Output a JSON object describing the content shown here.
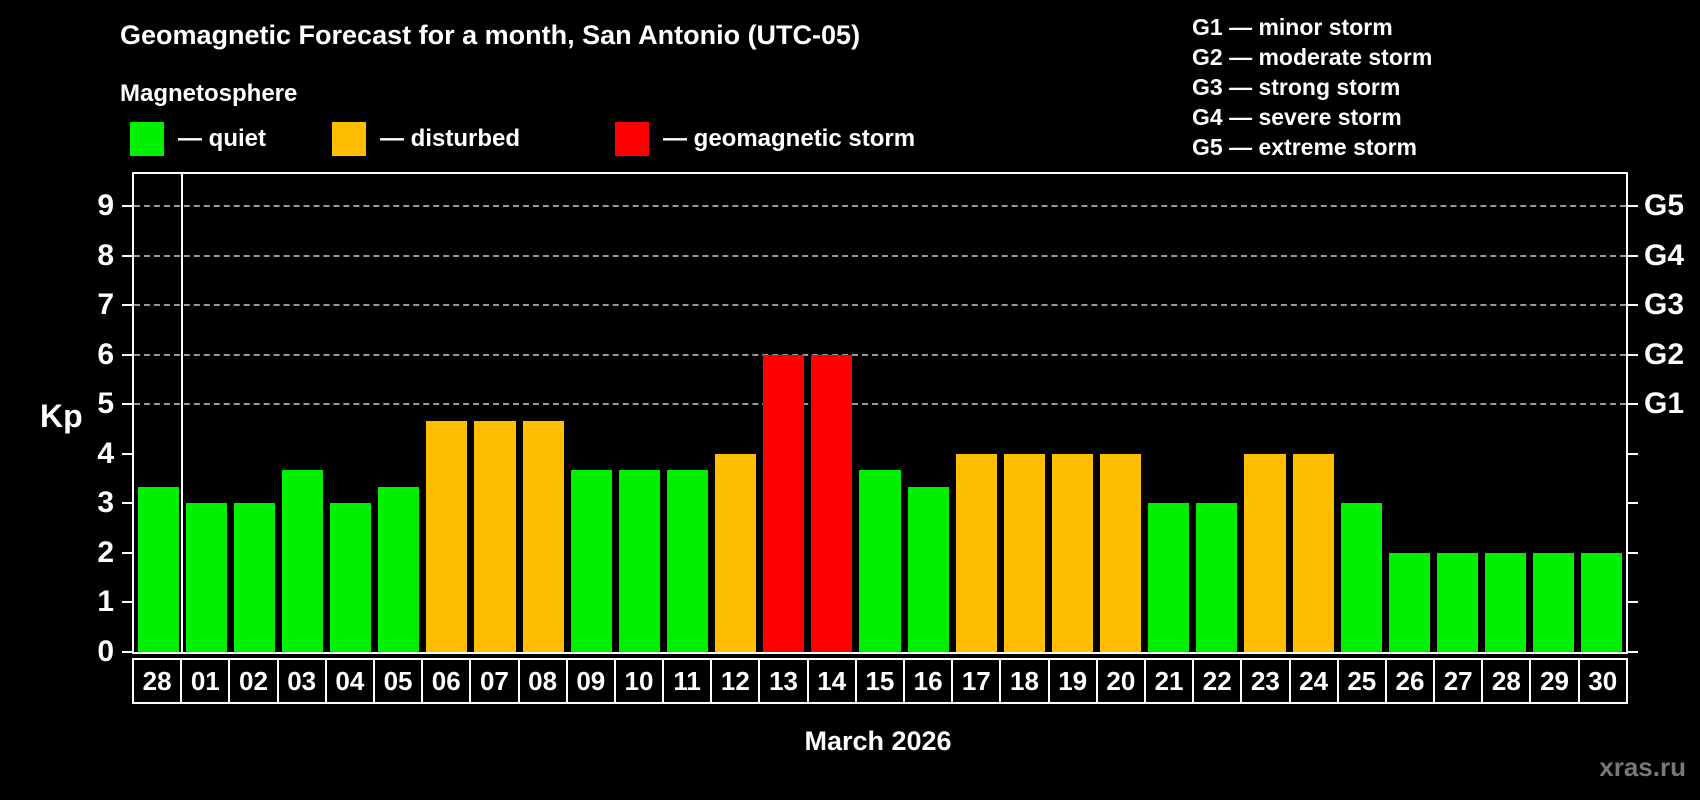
{
  "title": "Geomagnetic Forecast for a month, San Antonio (UTC-05)",
  "subtitle": "Magnetosphere",
  "legend": {
    "quiet": {
      "label": "— quiet",
      "color": "#00f000"
    },
    "disturbed": {
      "label": "— disturbed",
      "color": "#ffbe00"
    },
    "storm": {
      "label": "— geomagnetic storm",
      "color": "#ff0000"
    }
  },
  "g_levels_legend": [
    "G1 — minor storm",
    "G2 — moderate storm",
    "G3 — strong storm",
    "G4 — severe storm",
    "G5 — extreme storm"
  ],
  "watermark": "xras.ru",
  "chart_data": {
    "type": "bar",
    "title": "Geomagnetic Forecast for a month, San Antonio (UTC-05)",
    "ylabel": "Kp",
    "xlabel": "March 2026",
    "ylim": [
      0,
      9.65
    ],
    "y_ticks": [
      0,
      1,
      2,
      3,
      4,
      5,
      6,
      7,
      8,
      9
    ],
    "gridlines_at": [
      5,
      6,
      7,
      8,
      9
    ],
    "grid_style": "dashed horizontal lines only at storm levels Kp 5-9",
    "right_axis_labels": [
      {
        "kp": 5,
        "label": "G1"
      },
      {
        "kp": 6,
        "label": "G2"
      },
      {
        "kp": 7,
        "label": "G3"
      },
      {
        "kp": 8,
        "label": "G4"
      },
      {
        "kp": 9,
        "label": "G5"
      }
    ],
    "legend_position": "top-left",
    "month_separator_after_index": 0,
    "categories": [
      "28",
      "01",
      "02",
      "03",
      "04",
      "05",
      "06",
      "07",
      "08",
      "09",
      "10",
      "11",
      "12",
      "13",
      "14",
      "15",
      "16",
      "17",
      "18",
      "19",
      "20",
      "21",
      "22",
      "23",
      "24",
      "25",
      "26",
      "27",
      "28",
      "29",
      "30"
    ],
    "values": [
      3.33,
      3,
      3,
      3.67,
      3,
      3.33,
      4.67,
      4.67,
      4.67,
      3.67,
      3.67,
      3.67,
      4,
      6,
      6,
      3.67,
      3.33,
      4,
      4,
      4,
      4,
      3,
      3,
      4,
      4,
      3,
      2,
      2,
      2,
      2,
      2
    ],
    "statuses": [
      "quiet",
      "quiet",
      "quiet",
      "quiet",
      "quiet",
      "quiet",
      "disturbed",
      "disturbed",
      "disturbed",
      "quiet",
      "quiet",
      "quiet",
      "disturbed",
      "storm",
      "storm",
      "quiet",
      "quiet",
      "disturbed",
      "disturbed",
      "disturbed",
      "disturbed",
      "quiet",
      "quiet",
      "disturbed",
      "disturbed",
      "quiet",
      "quiet",
      "quiet",
      "quiet",
      "quiet",
      "quiet"
    ],
    "status_colors": {
      "quiet": "#00f000",
      "disturbed": "#ffbe00",
      "storm": "#ff0000"
    }
  }
}
